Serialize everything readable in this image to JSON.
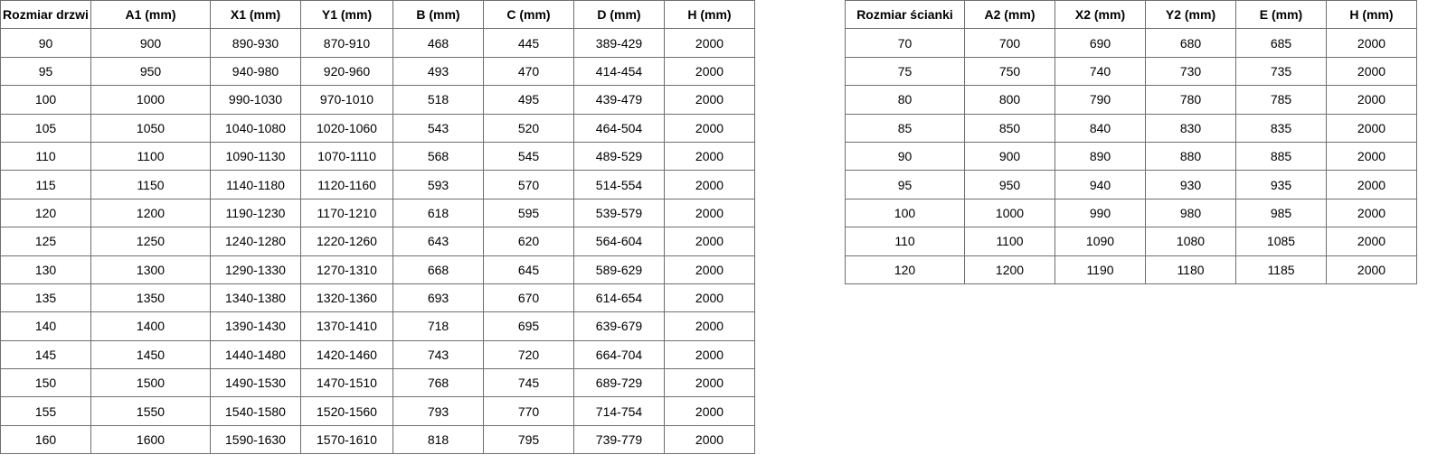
{
  "door_table": {
    "headers": [
      "Rozmiar drzwi",
      "A1 (mm)",
      "X1 (mm)",
      "Y1 (mm)",
      "B (mm)",
      "C (mm)",
      "D (mm)",
      "H (mm)"
    ],
    "rows": [
      [
        "90",
        "900",
        "890-930",
        "870-910",
        "468",
        "445",
        "389-429",
        "2000"
      ],
      [
        "95",
        "950",
        "940-980",
        "920-960",
        "493",
        "470",
        "414-454",
        "2000"
      ],
      [
        "100",
        "1000",
        "990-1030",
        "970-1010",
        "518",
        "495",
        "439-479",
        "2000"
      ],
      [
        "105",
        "1050",
        "1040-1080",
        "1020-1060",
        "543",
        "520",
        "464-504",
        "2000"
      ],
      [
        "110",
        "1100",
        "1090-1130",
        "1070-1110",
        "568",
        "545",
        "489-529",
        "2000"
      ],
      [
        "115",
        "1150",
        "1140-1180",
        "1120-1160",
        "593",
        "570",
        "514-554",
        "2000"
      ],
      [
        "120",
        "1200",
        "1190-1230",
        "1170-1210",
        "618",
        "595",
        "539-579",
        "2000"
      ],
      [
        "125",
        "1250",
        "1240-1280",
        "1220-1260",
        "643",
        "620",
        "564-604",
        "2000"
      ],
      [
        "130",
        "1300",
        "1290-1330",
        "1270-1310",
        "668",
        "645",
        "589-629",
        "2000"
      ],
      [
        "135",
        "1350",
        "1340-1380",
        "1320-1360",
        "693",
        "670",
        "614-654",
        "2000"
      ],
      [
        "140",
        "1400",
        "1390-1430",
        "1370-1410",
        "718",
        "695",
        "639-679",
        "2000"
      ],
      [
        "145",
        "1450",
        "1440-1480",
        "1420-1460",
        "743",
        "720",
        "664-704",
        "2000"
      ],
      [
        "150",
        "1500",
        "1490-1530",
        "1470-1510",
        "768",
        "745",
        "689-729",
        "2000"
      ],
      [
        "155",
        "1550",
        "1540-1580",
        "1520-1560",
        "793",
        "770",
        "714-754",
        "2000"
      ],
      [
        "160",
        "1600",
        "1590-1630",
        "1570-1610",
        "818",
        "795",
        "739-779",
        "2000"
      ]
    ]
  },
  "wall_table": {
    "headers": [
      "Rozmiar ścianki",
      "A2 (mm)",
      "X2 (mm)",
      "Y2 (mm)",
      "E (mm)",
      "H (mm)"
    ],
    "rows": [
      [
        "70",
        "700",
        "690",
        "680",
        "685",
        "2000"
      ],
      [
        "75",
        "750",
        "740",
        "730",
        "735",
        "2000"
      ],
      [
        "80",
        "800",
        "790",
        "780",
        "785",
        "2000"
      ],
      [
        "85",
        "850",
        "840",
        "830",
        "835",
        "2000"
      ],
      [
        "90",
        "900",
        "890",
        "880",
        "885",
        "2000"
      ],
      [
        "95",
        "950",
        "940",
        "930",
        "935",
        "2000"
      ],
      [
        "100",
        "1000",
        "990",
        "980",
        "985",
        "2000"
      ],
      [
        "110",
        "1100",
        "1090",
        "1080",
        "1085",
        "2000"
      ],
      [
        "120",
        "1200",
        "1190",
        "1180",
        "1185",
        "2000"
      ]
    ]
  }
}
